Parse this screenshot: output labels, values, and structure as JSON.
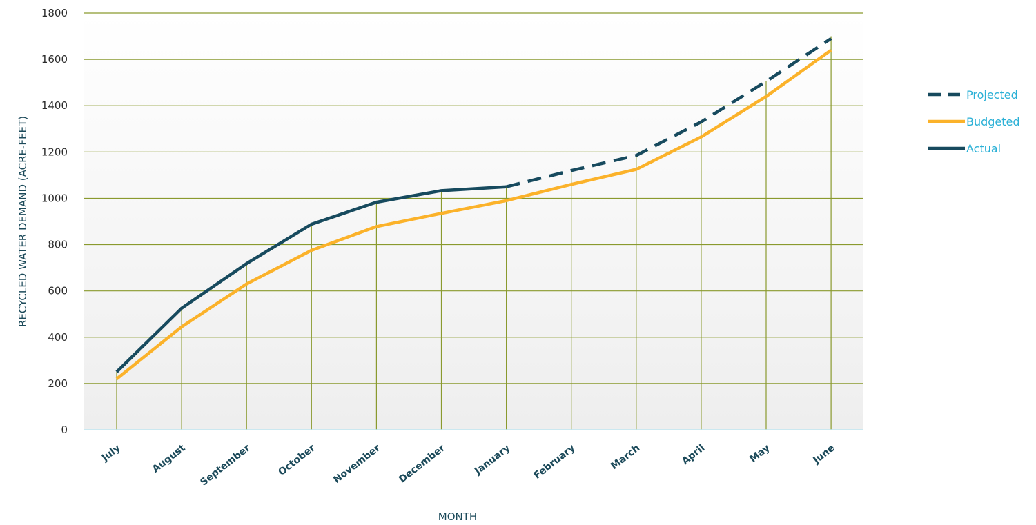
{
  "chart_data": {
    "type": "line",
    "title": "",
    "xlabel": "MONTH",
    "ylabel": "RECYCLED WATER DEMAND (ACRE-FEET)",
    "ylim": [
      0,
      1800
    ],
    "yticks": [
      0,
      200,
      400,
      600,
      800,
      1000,
      1200,
      1400,
      1600,
      1800
    ],
    "categories": [
      "July",
      "August",
      "September",
      "October",
      "November",
      "December",
      "January",
      "February",
      "March",
      "April",
      "May",
      "June"
    ],
    "grid": true,
    "legend_position": "right",
    "series": [
      {
        "name": "Projected",
        "style": "dashed",
        "color": "#174a5e",
        "values": [
          null,
          null,
          null,
          null,
          null,
          null,
          1050,
          1120,
          1185,
          1330,
          1505,
          1690
        ]
      },
      {
        "name": "Budgeted",
        "style": "solid",
        "color": "#fbb22a",
        "values": [
          220,
          445,
          630,
          775,
          878,
          935,
          990,
          1060,
          1125,
          1265,
          1440,
          1640
        ]
      },
      {
        "name": "Actual",
        "style": "solid",
        "color": "#174a5e",
        "values": [
          250,
          525,
          718,
          888,
          983,
          1033,
          1050,
          null,
          null,
          null,
          null,
          null
        ]
      }
    ],
    "colors": {
      "grid": "#8a9a2e",
      "axis": "#bfe6f0",
      "plot_band_top": "#ffffff",
      "plot_band_bottom": "#eeeeee"
    }
  }
}
